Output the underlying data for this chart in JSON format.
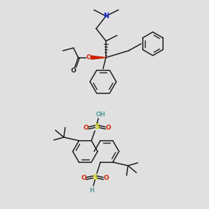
{
  "background_color": "#e0e0e0",
  "figsize": [
    3.0,
    3.0
  ],
  "dpi": 100,
  "colors": {
    "C": "#1a1a1a",
    "N": "#1a35cc",
    "O": "#cc2200",
    "S": "#cccc00",
    "H_teal": "#5a9a9a",
    "bg": "#e0e0e0"
  }
}
